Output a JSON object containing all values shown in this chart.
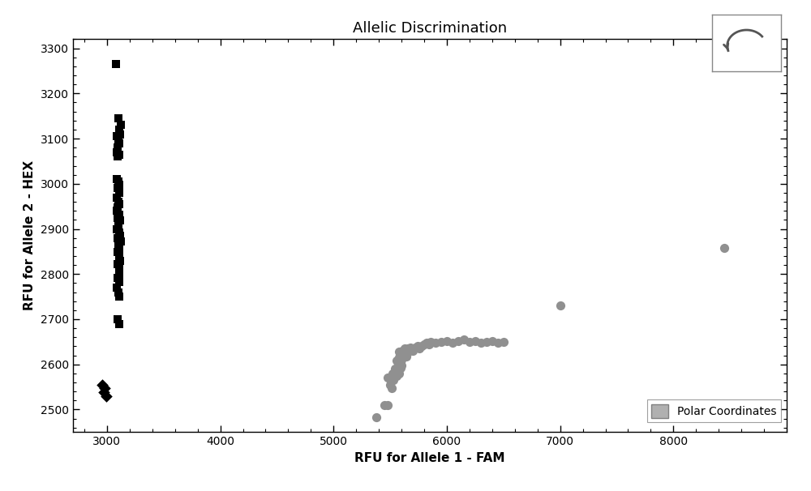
{
  "title": "Allelic Discrimination",
  "xlabel": "RFU for Allele 1 - FAM",
  "ylabel": "RFU for Allele 2 - HEX",
  "xlim": [
    2700,
    9000
  ],
  "ylim": [
    2450,
    3320
  ],
  "xticks": [
    3000,
    4000,
    5000,
    6000,
    7000,
    8000
  ],
  "yticks": [
    2500,
    2600,
    2700,
    2800,
    2900,
    3000,
    3100,
    3200,
    3300
  ],
  "background_color": "#ffffff",
  "legend_label": "Polar Coordinates",
  "legend_color": "#b0b0b0",
  "squares_black": [
    [
      3080,
      3265
    ],
    [
      3100,
      3145
    ],
    [
      3120,
      3130
    ],
    [
      3105,
      3120
    ],
    [
      3115,
      3110
    ],
    [
      3090,
      3105
    ],
    [
      3100,
      3095
    ],
    [
      3110,
      3090
    ],
    [
      3095,
      3080
    ],
    [
      3090,
      3070
    ],
    [
      3105,
      3065
    ],
    [
      3095,
      3060
    ],
    [
      3085,
      3010
    ],
    [
      3100,
      3005
    ],
    [
      3110,
      2998
    ],
    [
      3095,
      2990
    ],
    [
      3105,
      2980
    ],
    [
      3090,
      2970
    ],
    [
      3100,
      2960
    ],
    [
      3110,
      2955
    ],
    [
      3095,
      2948
    ],
    [
      3090,
      2940
    ],
    [
      3105,
      2932
    ],
    [
      3095,
      2925
    ],
    [
      3115,
      2918
    ],
    [
      3100,
      2910
    ],
    [
      3090,
      2900
    ],
    [
      3105,
      2892
    ],
    [
      3115,
      2885
    ],
    [
      3095,
      2880
    ],
    [
      3120,
      2872
    ],
    [
      3100,
      2865
    ],
    [
      3110,
      2855
    ],
    [
      3095,
      2848
    ],
    [
      3105,
      2840
    ],
    [
      3115,
      2830
    ],
    [
      3095,
      2822
    ],
    [
      3105,
      2812
    ],
    [
      3110,
      2800
    ],
    [
      3095,
      2792
    ],
    [
      3105,
      2782
    ],
    [
      3090,
      2770
    ],
    [
      3100,
      2760
    ],
    [
      3110,
      2750
    ],
    [
      3095,
      2700
    ],
    [
      3105,
      2690
    ]
  ],
  "diamonds_black": [
    [
      2960,
      2555
    ],
    [
      2980,
      2548
    ],
    [
      2970,
      2538
    ],
    [
      2990,
      2530
    ]
  ],
  "circles_gray": [
    [
      5380,
      2482
    ],
    [
      5450,
      2510
    ],
    [
      5480,
      2510
    ],
    [
      5500,
      2555
    ],
    [
      5510,
      2548
    ],
    [
      5480,
      2570
    ],
    [
      5530,
      2565
    ],
    [
      5520,
      2580
    ],
    [
      5560,
      2575
    ],
    [
      5540,
      2590
    ],
    [
      5580,
      2580
    ],
    [
      5590,
      2592
    ],
    [
      5600,
      2598
    ],
    [
      5560,
      2608
    ],
    [
      5580,
      2615
    ],
    [
      5600,
      2610
    ],
    [
      5620,
      2620
    ],
    [
      5640,
      2618
    ],
    [
      5650,
      2625
    ],
    [
      5580,
      2628
    ],
    [
      5610,
      2630
    ],
    [
      5630,
      2635
    ],
    [
      5660,
      2635
    ],
    [
      5680,
      2638
    ],
    [
      5700,
      2630
    ],
    [
      5720,
      2638
    ],
    [
      5740,
      2640
    ],
    [
      5760,
      2635
    ],
    [
      5780,
      2640
    ],
    [
      5800,
      2645
    ],
    [
      5820,
      2648
    ],
    [
      5840,
      2645
    ],
    [
      5860,
      2650
    ],
    [
      5900,
      2648
    ],
    [
      5950,
      2650
    ],
    [
      6000,
      2652
    ],
    [
      6050,
      2648
    ],
    [
      6100,
      2652
    ],
    [
      6150,
      2655
    ],
    [
      6200,
      2650
    ],
    [
      6250,
      2652
    ],
    [
      6300,
      2648
    ],
    [
      6350,
      2650
    ],
    [
      6400,
      2652
    ],
    [
      6450,
      2648
    ],
    [
      6500,
      2650
    ],
    [
      7000,
      2730
    ],
    [
      8450,
      2858
    ]
  ]
}
